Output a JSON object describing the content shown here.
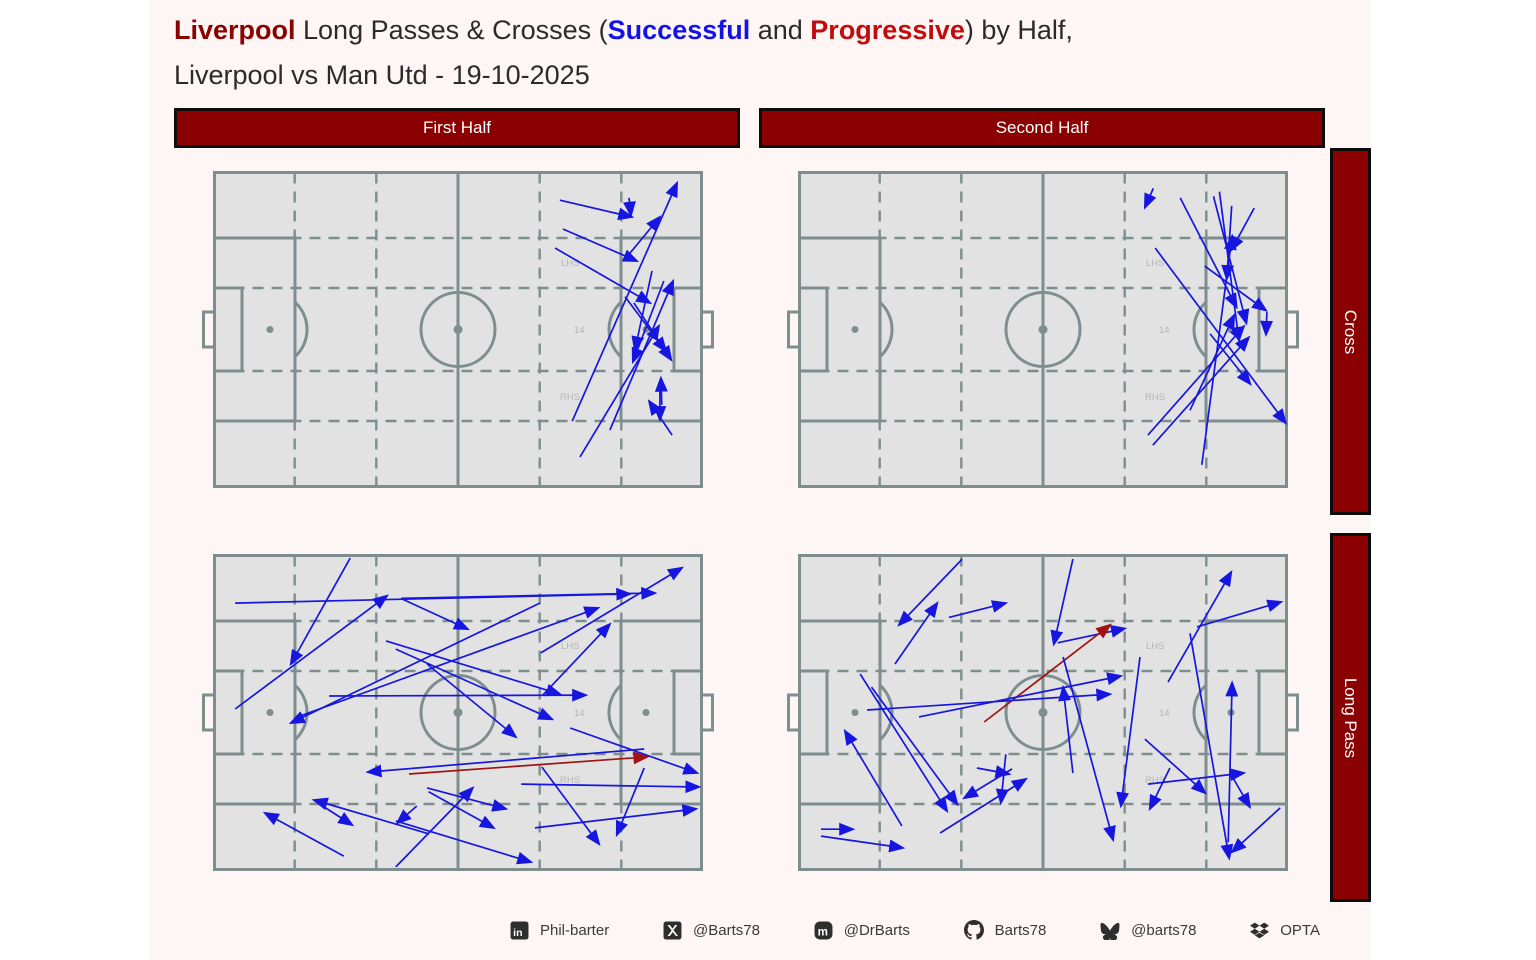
{
  "title": {
    "team": "Liverpool",
    "line1_mid": " Long Passes & Crosses (",
    "successful": "Successful",
    "and_word": " and ",
    "progressive": "Progressive",
    "line1_end": ") by Half,",
    "line2": "Liverpool vs Man Utd - 19-10-2025"
  },
  "columns": {
    "first": "First Half",
    "second": "Second Half"
  },
  "rows": {
    "cross": "Cross",
    "long_pass": "Long Pass"
  },
  "colors": {
    "successful": "#1616e0",
    "progressive": "#a31212",
    "title_team": "#8b0000",
    "title_successful": "#1313e8",
    "title_progressive": "#c00c0c",
    "header_bg": "#8b0000",
    "header_border": "#0d0d0d",
    "figure_bg": "#fdf6f4",
    "pitch_fill": "#e2e2e2",
    "pitch_line": "#7e8e8e",
    "zone_label": "#b5b5b5",
    "footer_text": "#3a3a3a"
  },
  "footer": {
    "items": [
      {
        "icon": "linkedin-icon",
        "label": "Phil-barter"
      },
      {
        "icon": "x-icon",
        "label": "@Barts78"
      },
      {
        "icon": "mastodon-icon",
        "label": "@DrBarts"
      },
      {
        "icon": "github-icon",
        "label": "Barts78"
      },
      {
        "icon": "bluesky-icon",
        "label": "@barts78"
      },
      {
        "icon": "opta-icon",
        "label": "OPTA"
      }
    ]
  },
  "chart_data": {
    "type": "pass_map",
    "title": "Liverpool Long Passes & Crosses (Successful and Progressive) by Half, Liverpool vs Man Utd - 19-10-2025",
    "coordinate_system": "percent of pitch; x 0=left goal line, 100=right goal line; y 0=top touchline, 100=bottom touchline; attack left to right",
    "pass_format": [
      "x1",
      "y1",
      "x2",
      "y2",
      "result"
    ],
    "result_codes": {
      "s": "successful (blue)",
      "p": "progressive (dark red)"
    },
    "pitch_zone_labels": [
      "LHS",
      "14",
      "RHS"
    ],
    "legend_position": "none",
    "pitches": [
      {
        "id": "first-half-cross",
        "column": "First Half",
        "row": "Cross",
        "passes": [
          [
            70.8,
            9.2,
            85.5,
            14.5,
            "s"
          ],
          [
            71.4,
            18.3,
            86.5,
            28.4,
            "s"
          ],
          [
            69.8,
            24.3,
            89.2,
            41.6,
            "s"
          ],
          [
            73.3,
            78.9,
            94.7,
            3.8,
            "s"
          ],
          [
            84.9,
            8.5,
            85.3,
            14.0,
            "s"
          ],
          [
            85.1,
            25.9,
            91.2,
            14.5,
            "s"
          ],
          [
            81.0,
            81.7,
            93.9,
            34.7,
            "s"
          ],
          [
            74.9,
            90.2,
            91.0,
            48.9,
            "s"
          ],
          [
            84.1,
            39.7,
            92.4,
            56.8,
            "s"
          ],
          [
            85.9,
            41.6,
            93.5,
            59.6,
            "s"
          ],
          [
            89.6,
            31.5,
            86.1,
            56.5,
            "s"
          ],
          [
            92.0,
            34.7,
            85.7,
            60.2,
            "s"
          ],
          [
            91.6,
            73.8,
            91.4,
            65.3,
            "s"
          ],
          [
            93.7,
            83.3,
            89.0,
            72.6,
            "s"
          ],
          [
            91.2,
            68.5,
            91.2,
            78.5,
            "s"
          ]
        ]
      },
      {
        "id": "second-half-cross",
        "column": "Second Half",
        "row": "Cross",
        "passes": [
          [
            72.5,
            5.5,
            70.8,
            11.5,
            "s"
          ],
          [
            78.0,
            8.5,
            89.5,
            43.0,
            "s"
          ],
          [
            84.8,
            8.0,
            91.5,
            48.0,
            "s"
          ],
          [
            86.0,
            6.5,
            90.0,
            53.5,
            "s"
          ],
          [
            88.5,
            11.0,
            87.5,
            34.0,
            "s"
          ],
          [
            93.1,
            11.7,
            88.4,
            25.0,
            "s"
          ],
          [
            72.9,
            24.3,
            99.5,
            79.5,
            "s"
          ],
          [
            71.4,
            83.3,
            91.0,
            49.0,
            "s"
          ],
          [
            72.4,
            86.5,
            92.0,
            52.5,
            "s"
          ],
          [
            80.0,
            75.5,
            89.0,
            45.5,
            "s"
          ],
          [
            82.4,
            92.7,
            88.6,
            20.5,
            "s"
          ],
          [
            95.7,
            44.5,
            95.5,
            51.6,
            "s"
          ],
          [
            83.0,
            30.0,
            95.5,
            44.0,
            "s"
          ],
          [
            84.1,
            51.4,
            92.3,
            67.2,
            "s"
          ]
        ]
      },
      {
        "id": "first-half-long-pass",
        "column": "First Half",
        "row": "Long Pass",
        "passes": [
          [
            4.5,
            15.5,
            85.1,
            12.6,
            "s"
          ],
          [
            38.4,
            14.0,
            90.2,
            12.3,
            "s"
          ],
          [
            28.0,
            1.3,
            15.9,
            34.7,
            "s"
          ],
          [
            4.5,
            48.9,
            35.5,
            13.2,
            "s"
          ],
          [
            16.7,
            51.7,
            78.6,
            17.0,
            "s"
          ],
          [
            23.7,
            44.8,
            76.1,
            44.5,
            "s"
          ],
          [
            35.3,
            27.4,
            70.8,
            44.2,
            "s"
          ],
          [
            37.3,
            30.0,
            69.2,
            52.1,
            "s"
          ],
          [
            66.7,
            15.5,
            15.9,
            53.3,
            "s"
          ],
          [
            38.6,
            14.2,
            52.0,
            23.7,
            "s"
          ],
          [
            43.7,
            34.7,
            61.8,
            57.7,
            "s"
          ],
          [
            67.3,
            44.5,
            81.0,
            22.1,
            "s"
          ],
          [
            88.0,
            61.5,
            31.6,
            68.8,
            "s"
          ],
          [
            40.0,
            69.4,
            88.6,
            64.0,
            "p"
          ],
          [
            44.1,
            88.3,
            20.6,
            77.6,
            "s"
          ],
          [
            26.7,
            95.3,
            10.6,
            81.7,
            "s"
          ],
          [
            22.7,
            79.8,
            28.4,
            85.5,
            "s"
          ],
          [
            41.6,
            79.5,
            37.6,
            84.9,
            "s"
          ],
          [
            37.3,
            98.7,
            53.0,
            73.8,
            "s"
          ],
          [
            43.7,
            73.8,
            59.8,
            80.4,
            "s"
          ],
          [
            44.0,
            75.0,
            57.3,
            86.4,
            "s"
          ],
          [
            37.3,
            84.2,
            64.9,
            97.2,
            "s"
          ],
          [
            67.1,
            67.2,
            78.8,
            91.5,
            "s"
          ],
          [
            88.0,
            67.5,
            82.4,
            88.6,
            "s"
          ],
          [
            72.9,
            54.9,
            98.8,
            69.1,
            "s"
          ],
          [
            62.9,
            72.6,
            99.2,
            73.5,
            "s"
          ],
          [
            65.7,
            86.4,
            98.6,
            80.4,
            "s"
          ],
          [
            66.9,
            31.2,
            95.7,
            4.4,
            "s"
          ]
        ]
      },
      {
        "id": "second-half-long-pass",
        "column": "Second Half",
        "row": "Long Pass",
        "passes": [
          [
            33.5,
            1.6,
            20.6,
            22.4,
            "s"
          ],
          [
            19.8,
            34.7,
            28.4,
            15.5,
            "s"
          ],
          [
            30.8,
            20.0,
            42.4,
            15.5,
            "s"
          ],
          [
            56.1,
            1.6,
            52.2,
            28.5,
            "s"
          ],
          [
            53.0,
            28.0,
            66.7,
            23.5,
            "s"
          ],
          [
            38.0,
            53.0,
            63.7,
            22.4,
            "p"
          ],
          [
            75.5,
            40.4,
            88.4,
            5.7,
            "s"
          ],
          [
            81.4,
            23.0,
            98.6,
            15.1,
            "s"
          ],
          [
            24.7,
            51.4,
            65.9,
            38.5,
            "s"
          ],
          [
            14.1,
            49.2,
            63.7,
            44.2,
            "s"
          ],
          [
            56.1,
            69.1,
            54.1,
            42.0,
            "s"
          ],
          [
            21.2,
            85.8,
            9.6,
            55.8,
            "s"
          ],
          [
            12.7,
            37.9,
            30.4,
            81.1,
            "s"
          ],
          [
            15.0,
            42.0,
            32.5,
            79.0,
            "s"
          ],
          [
            43.7,
            67.8,
            33.9,
            77.0,
            "s"
          ],
          [
            29.0,
            88.0,
            46.5,
            71.0,
            "s"
          ],
          [
            36.5,
            67.5,
            43.1,
            69.4,
            "s"
          ],
          [
            42.4,
            63.2,
            41.4,
            78.5,
            "s"
          ],
          [
            4.7,
            86.8,
            11.2,
            86.8,
            "s"
          ],
          [
            4.7,
            89.0,
            21.4,
            92.7,
            "s"
          ],
          [
            54.1,
            32.5,
            64.3,
            90.2,
            "s"
          ],
          [
            75.9,
            67.5,
            71.8,
            80.4,
            "s"
          ],
          [
            69.8,
            32.5,
            65.9,
            79.5,
            "s"
          ],
          [
            87.8,
            90.9,
            88.6,
            40.6,
            "s"
          ],
          [
            71.4,
            72.6,
            91.0,
            69.1,
            "s"
          ],
          [
            70.8,
            58.4,
            83.1,
            75.4,
            "s"
          ],
          [
            88.2,
            69.1,
            92.2,
            79.8,
            "s"
          ],
          [
            98.4,
            80.1,
            88.6,
            94.0,
            "s"
          ],
          [
            80.0,
            25.0,
            88.0,
            96.0,
            "s"
          ]
        ]
      }
    ]
  }
}
